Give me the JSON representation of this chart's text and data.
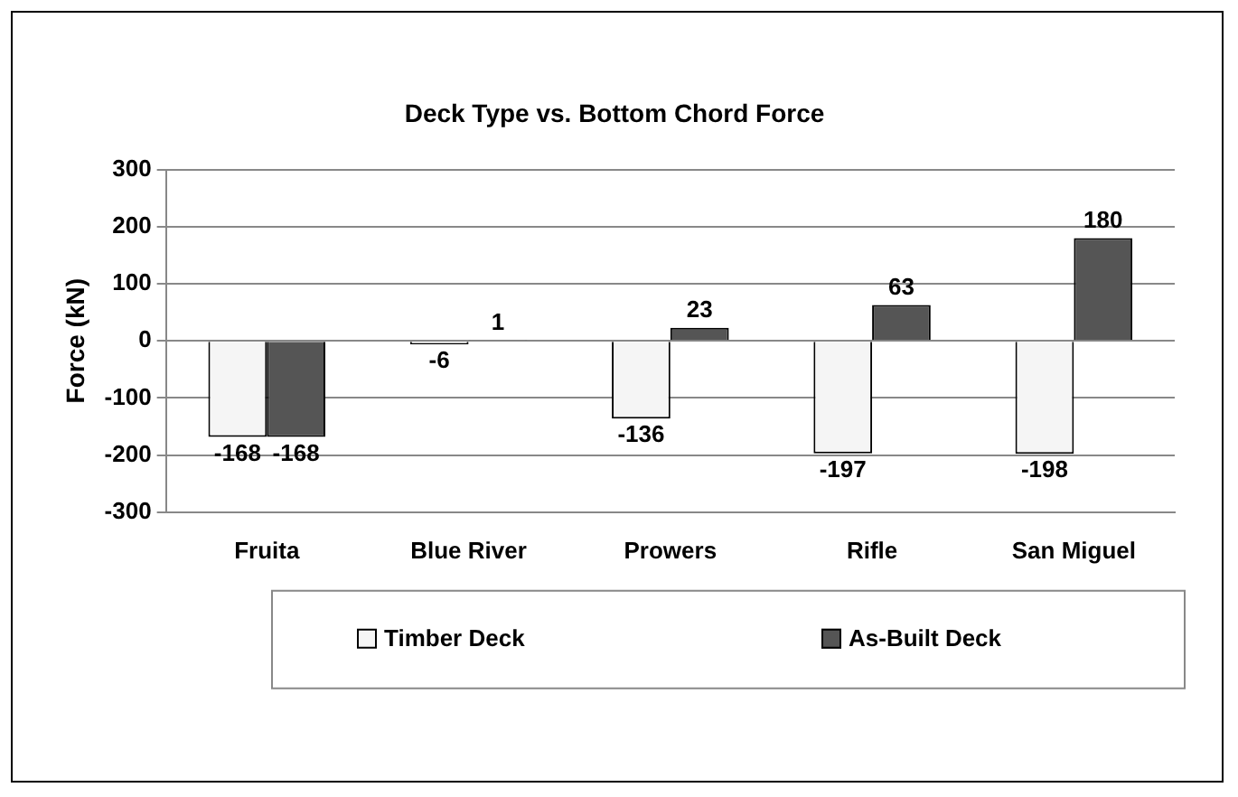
{
  "chart_data": {
    "type": "bar",
    "title": "Deck Type vs. Bottom Chord Force",
    "ylabel": "Force (kN)",
    "categories": [
      "Fruita",
      "Blue River",
      "Prowers",
      "Rifle",
      "San Miguel"
    ],
    "series": [
      {
        "name": "Timber Deck",
        "color": "#f5f5f5",
        "values": [
          -168,
          -6,
          -136,
          -197,
          -198
        ]
      },
      {
        "name": "As-Built Deck",
        "color": "#555555",
        "values": [
          -168,
          1,
          23,
          63,
          180
        ]
      }
    ],
    "ylim": [
      -300,
      300
    ],
    "yticks": [
      -300,
      -200,
      -100,
      0,
      100,
      200,
      300
    ],
    "grid": "y",
    "legend": "bottom",
    "data_labels": true
  }
}
